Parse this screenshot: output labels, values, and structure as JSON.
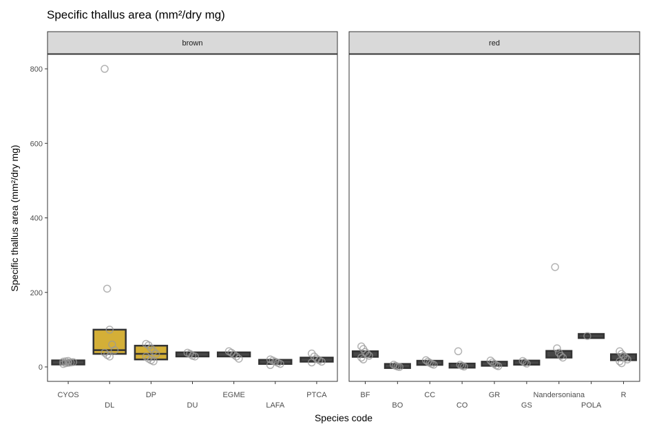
{
  "chart_data": {
    "type": "box",
    "title": "Specific thallus area (mm²/dry mg)",
    "xlabel": "Species code",
    "ylabel": "Specific thallus area (mm²/dry mg)",
    "ylim": [
      -40,
      900
    ],
    "yticks": [
      0,
      200,
      400,
      600,
      800
    ],
    "grid": false,
    "colors": {
      "filled_box": "#d4af37",
      "box_line": "#333333",
      "points": "#9a9a9a"
    },
    "panels": [
      {
        "facet": "brown",
        "categories": [
          {
            "code": "CYOS",
            "q1": 9,
            "median": 12,
            "q3": 15,
            "filled": false,
            "points": [
              8,
              10,
              11,
              12,
              13,
              14,
              15,
              16
            ]
          },
          {
            "code": "DL",
            "q1": 35,
            "median": 45,
            "q3": 100,
            "filled": true,
            "points": [
              800,
              210,
              100,
              60,
              45,
              38,
              32,
              28
            ]
          },
          {
            "code": "DP",
            "q1": 20,
            "median": 35,
            "q3": 57,
            "filled": true,
            "points": [
              62,
              58,
              50,
              42,
              35,
              28,
              22,
              18,
              15
            ]
          },
          {
            "code": "DU",
            "q1": 29,
            "median": 33,
            "q3": 38,
            "filled": false,
            "points": [
              38,
              35,
              30,
              28
            ]
          },
          {
            "code": "EGME",
            "q1": 28,
            "median": 33,
            "q3": 39,
            "filled": false,
            "points": [
              42,
              38,
              33,
              28,
              22
            ]
          },
          {
            "code": "LAFA",
            "q1": 9,
            "median": 13,
            "q3": 18,
            "filled": false,
            "points": [
              20,
              17,
              14,
              11,
              8,
              5
            ]
          },
          {
            "code": "PTCA",
            "q1": 15,
            "median": 20,
            "q3": 24,
            "filled": false,
            "points": [
              36,
              28,
              22,
              18,
              14,
              12
            ]
          }
        ]
      },
      {
        "facet": "red",
        "categories": [
          {
            "code": "BF",
            "q1": 27,
            "median": 33,
            "q3": 42,
            "filled": false,
            "points": [
              55,
              48,
              40,
              35,
              30,
              25,
              20
            ]
          },
          {
            "code": "BO",
            "q1": 0,
            "median": 2,
            "q3": 5,
            "filled": false,
            "points": [
              6,
              3,
              1,
              0
            ]
          },
          {
            "code": "CC",
            "q1": 7,
            "median": 11,
            "q3": 15,
            "filled": false,
            "points": [
              18,
              14,
              11,
              8,
              6
            ]
          },
          {
            "code": "CO",
            "q1": 1,
            "median": 3,
            "q3": 6,
            "filled": false,
            "points": [
              42,
              6,
              3,
              1
            ]
          },
          {
            "code": "GR",
            "q1": 3,
            "median": 8,
            "q3": 14,
            "filled": false,
            "points": [
              17,
              12,
              8,
              4,
              2
            ]
          },
          {
            "code": "GS",
            "q1": 8,
            "median": 11,
            "q3": 15,
            "filled": false,
            "points": [
              16,
              12,
              9
            ]
          },
          {
            "code": "Nandersoniana",
            "q1": 25,
            "median": 33,
            "q3": 43,
            "filled": false,
            "points": [
              268,
              50,
              38,
              30,
              25
            ]
          },
          {
            "code": "POLA",
            "q1": 80,
            "median": 83,
            "q3": 86,
            "filled": false,
            "points": [
              83
            ]
          },
          {
            "code": "R",
            "q1": 18,
            "median": 26,
            "q3": 34,
            "filled": false,
            "points": [
              42,
              35,
              30,
              25,
              20,
              15,
              10
            ]
          }
        ]
      }
    ]
  }
}
